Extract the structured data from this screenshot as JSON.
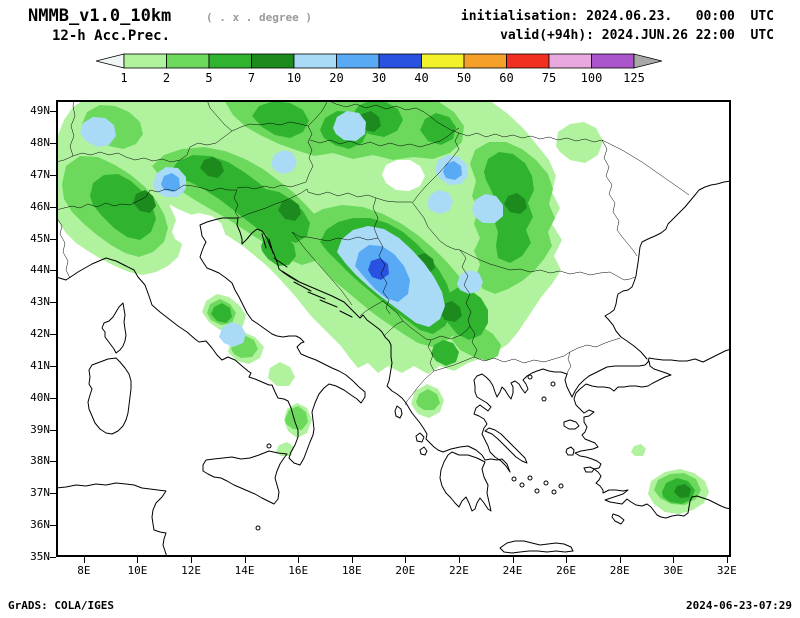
{
  "header": {
    "title": "NMMB_v1.0_10km",
    "title_note": "( . x . degree )",
    "subtitle": "12-h Acc.Prec.",
    "init_line": "initialisation: 2024.06.23.   00:00  UTC",
    "valid_line": "valid(+94h): 2024.JUN.26 22:00  UTC"
  },
  "legend": {
    "levels": [
      "1",
      "2",
      "5",
      "7",
      "10",
      "20",
      "30",
      "40",
      "50",
      "60",
      "75",
      "100",
      "125"
    ],
    "segment_colors": [
      "#b0f29e",
      "#6cd95c",
      "#30b430",
      "#1d8a1d",
      "#a9dbf7",
      "#58aaf5",
      "#2a52e0",
      "#f2f22a",
      "#f5a028",
      "#f23022",
      "#e8aade",
      "#aa55cc"
    ],
    "below_min_color": "#f0f5f5",
    "above_max_color": "#a8a8a8"
  },
  "axes": {
    "lat_labels": [
      "49N",
      "48N",
      "47N",
      "46N",
      "45N",
      "44N",
      "43N",
      "42N",
      "41N",
      "40N",
      "39N",
      "38N",
      "37N",
      "36N",
      "35N"
    ],
    "lon_labels": [
      "8E",
      "10E",
      "12E",
      "14E",
      "16E",
      "18E",
      "20E",
      "22E",
      "24E",
      "26E",
      "28E",
      "30E",
      "32E"
    ]
  },
  "footer": {
    "credit": "GrADS: COLA/IGES",
    "timestamp": "2024-06-23-07:29"
  }
}
